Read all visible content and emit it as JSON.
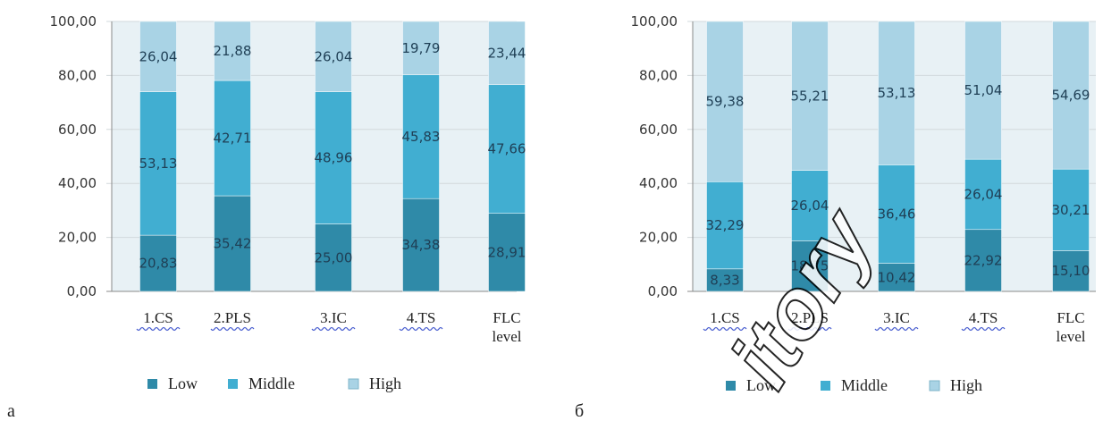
{
  "colors": {
    "low": "#2f8aa8",
    "middle": "#41aed1",
    "high": "#a9d3e5",
    "plot_bg": "#e8f1f5",
    "axis": "#8a8a8a"
  },
  "legend": [
    "Low",
    "Middle",
    "High"
  ],
  "chart_data": [
    {
      "type": "bar",
      "stacked": true,
      "panel_label": "a",
      "categories": [
        "1.CS",
        "2.PLS",
        "3.IC",
        "4.TS",
        "FLC level"
      ],
      "series": [
        {
          "name": "Low",
          "values": [
            20.83,
            35.42,
            25.0,
            34.38,
            28.91
          ],
          "labels": [
            "20,83",
            "35,42",
            "25,00",
            "34,38",
            "28,91"
          ]
        },
        {
          "name": "Middle",
          "values": [
            53.13,
            42.71,
            48.96,
            45.83,
            47.66
          ],
          "labels": [
            "53,13",
            "42,71",
            "48,96",
            "45,83",
            "47,66"
          ]
        },
        {
          "name": "High",
          "values": [
            26.04,
            21.88,
            26.04,
            19.79,
            23.44
          ],
          "labels": [
            "26,04",
            "21,88",
            "26,04",
            "19,79",
            "23,44"
          ]
        }
      ],
      "ylim": [
        0,
        100
      ],
      "yticks": [
        "0,00",
        "20,00",
        "40,00",
        "60,00",
        "80,00",
        "100,00"
      ],
      "legend_position": "bottom"
    },
    {
      "type": "bar",
      "stacked": true,
      "panel_label": "б",
      "categories": [
        "1.CS",
        "2.PLS",
        "3.IC",
        "4.TS",
        "FLC level"
      ],
      "series": [
        {
          "name": "Low",
          "values": [
            8.33,
            18.75,
            10.42,
            22.92,
            15.1
          ],
          "labels": [
            "8,33",
            "18,75",
            "10,42",
            "22,92",
            "15,10"
          ]
        },
        {
          "name": "Middle",
          "values": [
            32.29,
            26.04,
            36.46,
            26.04,
            30.21
          ],
          "labels": [
            "32,29",
            "26,04",
            "36,46",
            "26,04",
            "30,21"
          ]
        },
        {
          "name": "High",
          "values": [
            59.38,
            55.21,
            53.13,
            51.04,
            54.69
          ],
          "labels": [
            "59,38",
            "55,21",
            "53,13",
            "51,04",
            "54,69"
          ]
        }
      ],
      "ylim": [
        0,
        100
      ],
      "yticks": [
        "0,00",
        "20,00",
        "40,00",
        "60,00",
        "80,00",
        "100,00"
      ],
      "legend_position": "bottom"
    }
  ]
}
